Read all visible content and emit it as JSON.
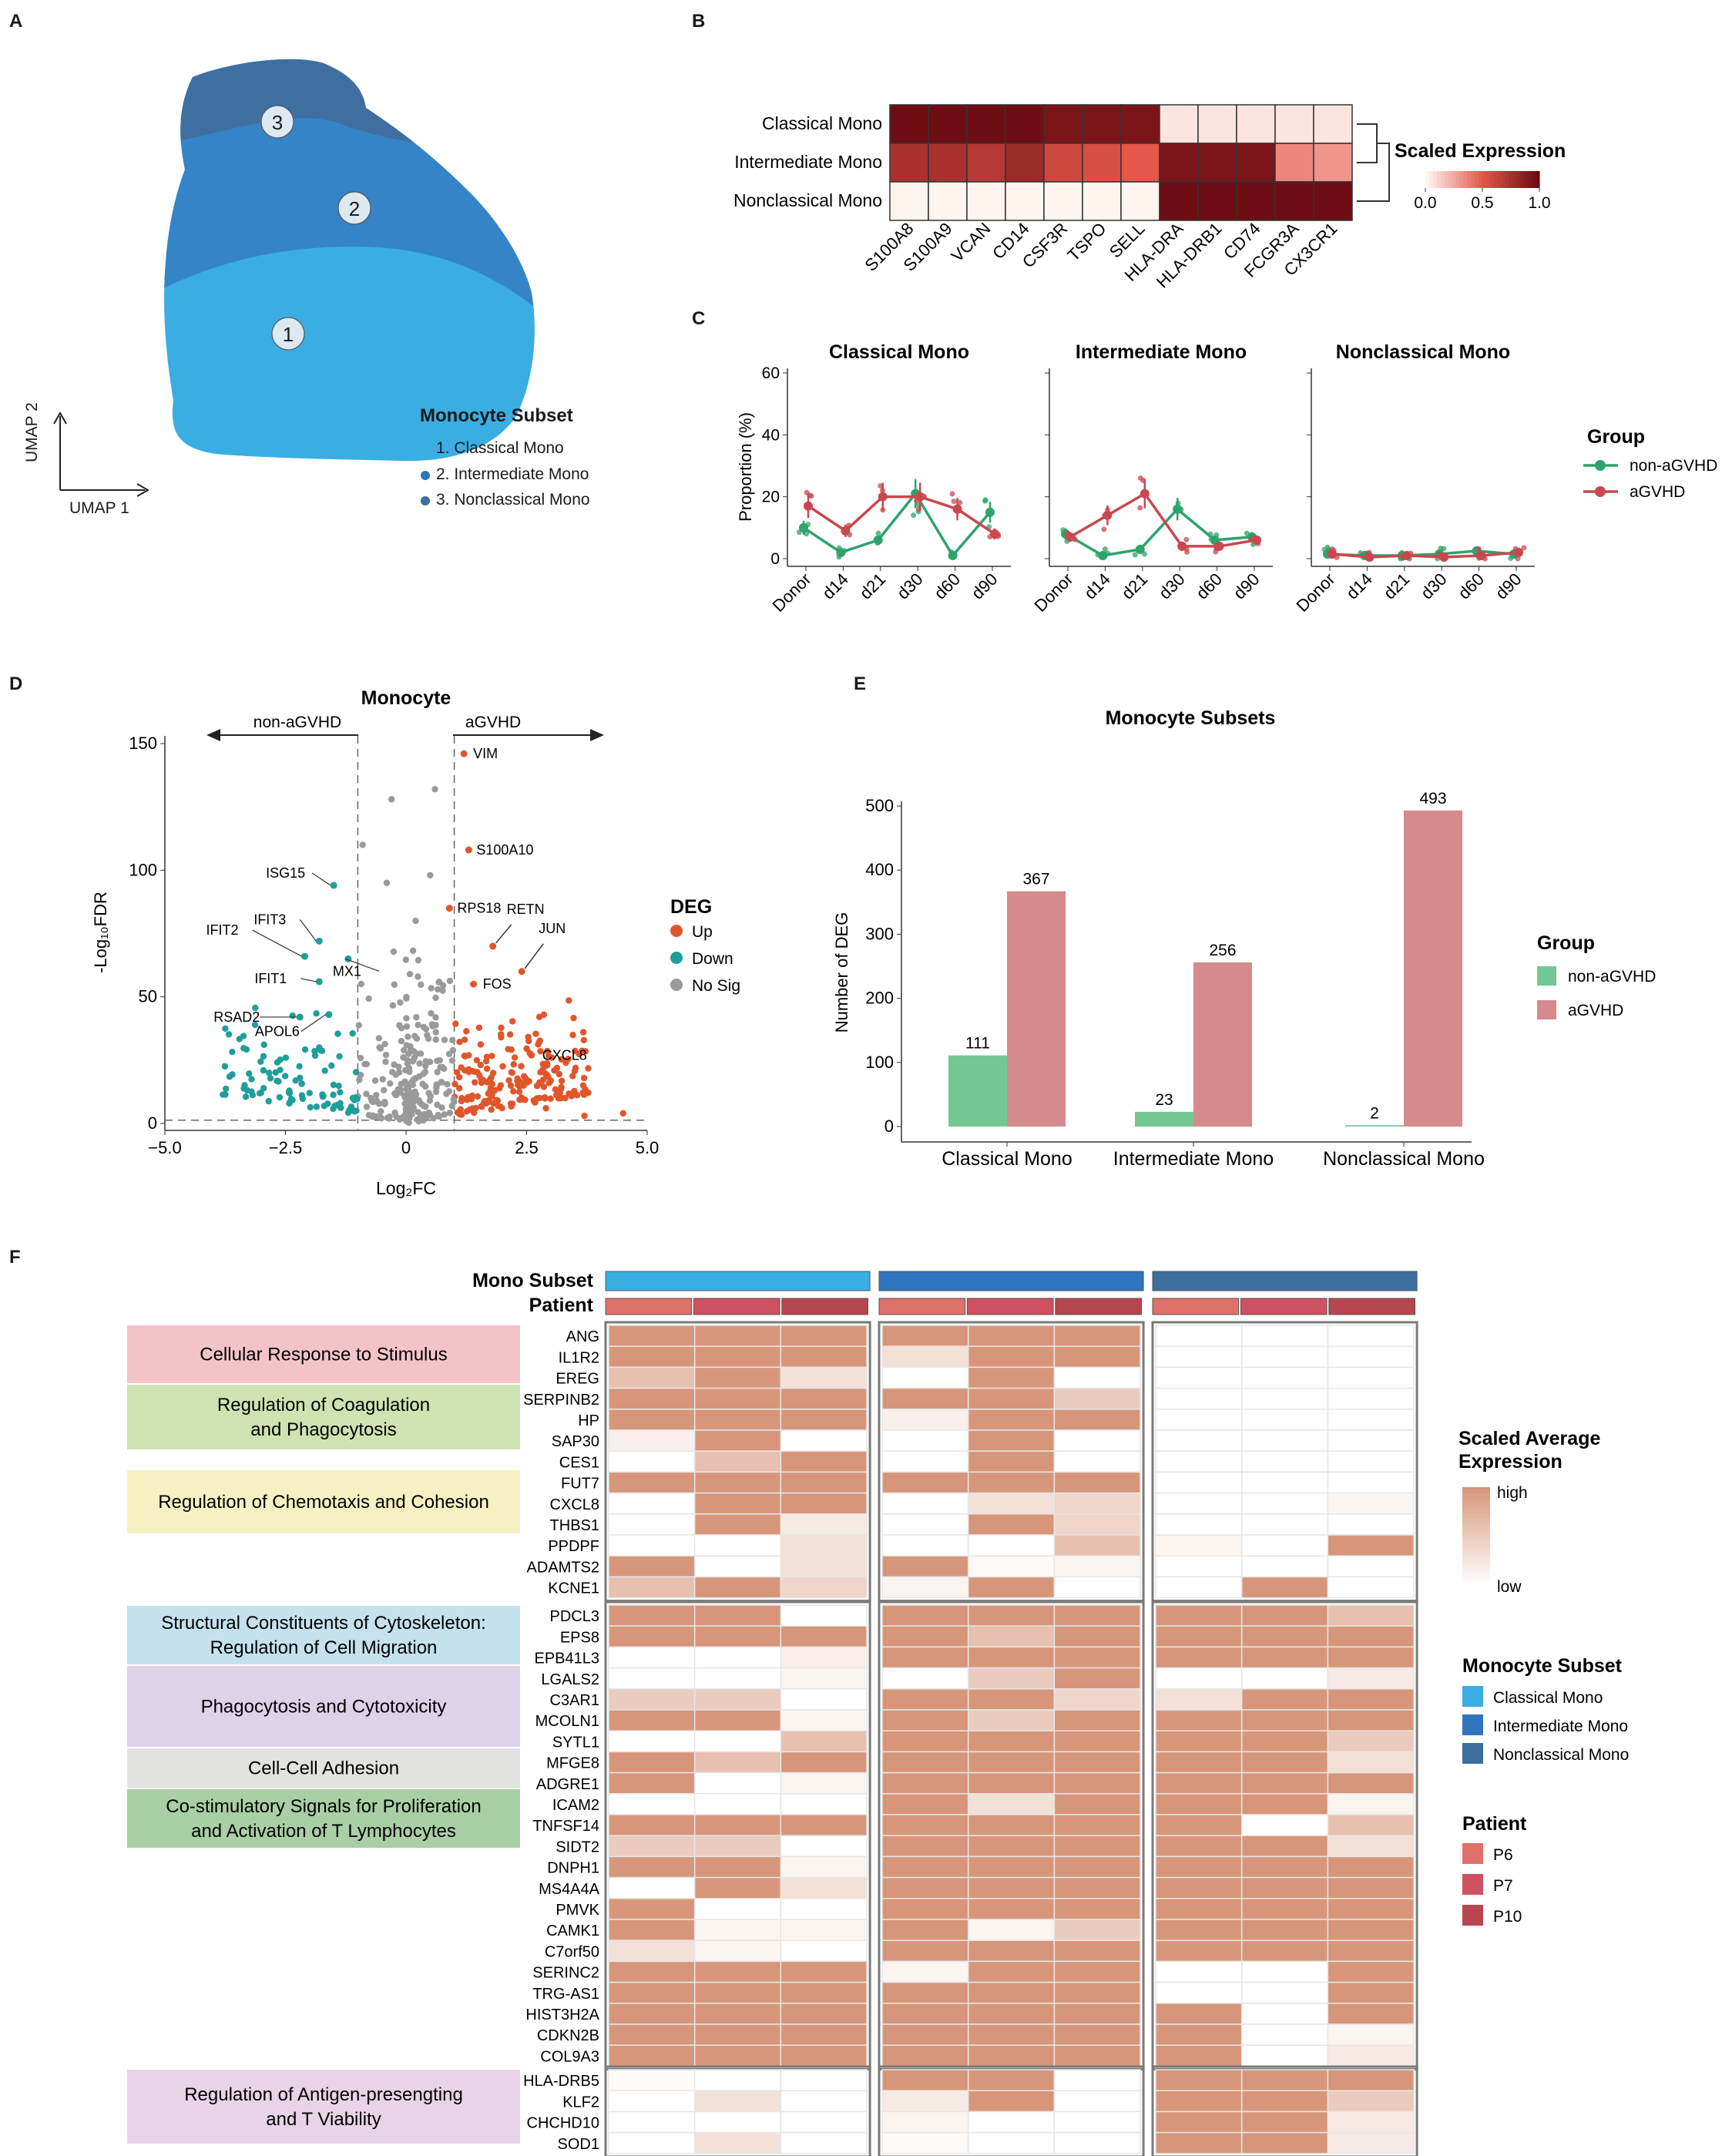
{
  "panels": {
    "A": "A",
    "B": "B",
    "C": "C",
    "D": "D",
    "E": "E",
    "F": "F"
  },
  "colors": {
    "classical": "#3aaee3",
    "intermediate": "#2f74bd",
    "nonclassical": "#3c6fa0",
    "non_agvhd_line": "#2ea36a",
    "agvhd_line": "#c8484f",
    "up": "#e0562a",
    "down": "#1f9e9a",
    "nosig": "#9a9a9a",
    "bar_non": "#74c795",
    "bar_agvhd": "#d58a8c",
    "heat_high": "#d7967a",
    "p6": "#e0706a",
    "p7": "#cf5060",
    "p10": "#b8454f"
  },
  "umap": {
    "xlabel": "UMAP 1",
    "ylabel": "UMAP 2",
    "legend_title": "Monocyte Subset",
    "legend_items": [
      "1. Classical Mono",
      "2. Intermediate Mono",
      "3. Nonclassical Mono"
    ],
    "cluster_labels": [
      "1",
      "2",
      "3"
    ]
  },
  "chart_data": [
    {
      "panel": "B",
      "type": "heatmap",
      "rows": [
        "Classical Mono",
        "Intermediate Mono",
        "Nonclassical Mono"
      ],
      "columns": [
        "S100A8",
        "S100A9",
        "VCAN",
        "CD14",
        "CSF3R",
        "TSPO",
        "SELL",
        "HLA-DRA",
        "HLA-DRB1",
        "CD74",
        "FCGR3A",
        "CX3CR1"
      ],
      "values": [
        [
          1.0,
          1.0,
          1.0,
          1.0,
          0.95,
          0.95,
          0.95,
          0.05,
          0.05,
          0.05,
          0.05,
          0.05
        ],
        [
          0.75,
          0.75,
          0.7,
          0.8,
          0.6,
          0.55,
          0.5,
          0.95,
          0.95,
          0.95,
          0.35,
          0.3
        ],
        [
          0.0,
          0.0,
          0.0,
          0.0,
          0.0,
          0.0,
          0.0,
          1.0,
          1.0,
          1.0,
          1.0,
          1.0
        ]
      ],
      "legend_title": "Scaled Expression",
      "legend_ticks": [
        "0.0",
        "0.5",
        "1.0"
      ]
    },
    {
      "panel": "C",
      "type": "line",
      "ylabel": "Proportion (%)",
      "ylim": [
        0,
        60
      ],
      "yticks": [
        "0",
        "20",
        "40",
        "60"
      ],
      "categories": [
        "Donor",
        "d14",
        "d21",
        "d30",
        "d60",
        "d90"
      ],
      "legend_title": "Group",
      "legend_entries": [
        "non-aGVHD",
        "aGVHD"
      ],
      "facets": [
        {
          "title": "Classical Mono",
          "series": [
            {
              "name": "non-aGVHD",
              "values": [
                10,
                2,
                6,
                21,
                1,
                15
              ]
            },
            {
              "name": "aGVHD",
              "values": [
                17,
                9,
                20,
                20,
                16,
                8
              ]
            }
          ]
        },
        {
          "title": "Intermediate Mono",
          "series": [
            {
              "name": "non-aGVHD",
              "values": [
                8,
                1,
                3,
                16,
                6,
                7
              ]
            },
            {
              "name": "aGVHD",
              "values": [
                7,
                14,
                21,
                4,
                4,
                6
              ]
            }
          ]
        },
        {
          "title": "Nonclassical Mono",
          "series": [
            {
              "name": "non-aGVHD",
              "values": [
                1.5,
                1,
                1,
                1.5,
                2.5,
                1.5
              ]
            },
            {
              "name": "aGVHD",
              "values": [
                1.5,
                0.5,
                1,
                0.5,
                1,
                2
              ]
            }
          ]
        }
      ]
    },
    {
      "panel": "D",
      "type": "scatter",
      "title": "Monocyte",
      "xlabel": "Log₂FC",
      "ylabel": "-Log₁₀FDR",
      "xlim": [
        -5,
        5
      ],
      "ylim": [
        0,
        150
      ],
      "xticks": [
        "−5.0",
        "−2.5",
        "0",
        "2.5",
        "5.0"
      ],
      "yticks": [
        "0",
        "50",
        "100",
        "150"
      ],
      "arrow_left": "non-aGVHD",
      "arrow_right": "aGVHD",
      "legend_title": "DEG",
      "legend_entries": [
        "Up",
        "Down",
        "No Sig"
      ],
      "labeled_up": [
        {
          "gene": "VIM",
          "x": 1.2,
          "y": 146
        },
        {
          "gene": "S100A10",
          "x": 1.3,
          "y": 108
        },
        {
          "gene": "RETN",
          "x": 1.8,
          "y": 70
        },
        {
          "gene": "RPS18",
          "x": 0.9,
          "y": 85
        },
        {
          "gene": "JUN",
          "x": 2.4,
          "y": 60
        },
        {
          "gene": "FOS",
          "x": 1.4,
          "y": 55
        },
        {
          "gene": "CXCL8",
          "x": 2.6,
          "y": 27
        }
      ],
      "labeled_down": [
        {
          "gene": "ISG15",
          "x": -1.5,
          "y": 94
        },
        {
          "gene": "IFIT3",
          "x": -1.8,
          "y": 72
        },
        {
          "gene": "IFIT2",
          "x": -2.1,
          "y": 66
        },
        {
          "gene": "MX1",
          "x": -1.2,
          "y": 65
        },
        {
          "gene": "IFIT1",
          "x": -1.8,
          "y": 56
        },
        {
          "gene": "RSAD2",
          "x": -2.2,
          "y": 42
        },
        {
          "gene": "APOL6",
          "x": -1.6,
          "y": 43
        }
      ]
    },
    {
      "panel": "E",
      "type": "bar",
      "title": "Monocyte Subsets",
      "ylabel": "Number of DEG",
      "ylim": [
        0,
        500
      ],
      "yticks": [
        "0",
        "100",
        "200",
        "300",
        "400",
        "500"
      ],
      "categories": [
        "Classical Mono",
        "Intermediate Mono",
        "Nonclassical Mono"
      ],
      "series": [
        {
          "name": "non-aGVHD",
          "values": [
            111,
            23,
            2
          ]
        },
        {
          "name": "aGVHD",
          "values": [
            367,
            256,
            493
          ]
        }
      ],
      "labels": [
        [
          "111",
          "367"
        ],
        [
          "23",
          "256"
        ],
        [
          "2",
          "493"
        ]
      ],
      "legend_title": "Group"
    },
    {
      "panel": "F",
      "type": "heatmap",
      "row_annotation_label": "Mono Subset",
      "col_annotation_label": "Patient",
      "groups": [
        {
          "genes": [
            "ANG",
            "IL1R2",
            "EREG",
            "SERPINB2",
            "HP",
            "SAP30",
            "CES1",
            "FUT7",
            "CXCL8",
            "THBS1",
            "PPDPF",
            "ADAMTS2",
            "KCNE1"
          ],
          "values": [
            [
              1,
              1,
              1,
              1,
              1,
              1,
              0,
              0,
              0
            ],
            [
              1,
              1,
              1,
              0.3,
              1,
              1,
              0,
              0,
              0
            ],
            [
              0.6,
              1,
              0.3,
              0,
              1,
              0,
              0,
              0,
              0
            ],
            [
              1,
              1,
              1,
              1,
              1,
              0.5,
              0,
              0,
              0
            ],
            [
              1,
              1,
              1,
              0.15,
              1,
              1,
              0,
              0,
              0
            ],
            [
              0.15,
              1,
              0,
              0,
              1,
              0,
              0,
              0,
              0
            ],
            [
              0,
              0.6,
              1,
              0,
              1,
              0,
              0,
              0,
              0
            ],
            [
              1,
              1,
              1,
              1,
              1,
              1,
              0,
              0,
              0
            ],
            [
              0,
              1,
              1,
              0,
              0.3,
              0.4,
              0,
              0,
              0.1
            ],
            [
              0,
              1,
              0.2,
              0,
              1,
              0.4,
              0,
              0,
              0
            ],
            [
              0,
              0,
              0.3,
              0,
              0,
              0.6,
              0.1,
              0,
              1
            ],
            [
              1,
              0,
              0.3,
              1,
              0.05,
              0.1,
              0,
              0,
              0
            ],
            [
              0.6,
              1,
              0.4,
              0.1,
              1,
              0,
              0,
              1,
              0
            ]
          ]
        },
        {
          "genes": [
            "PDCL3",
            "EPS8",
            "EPB41L3",
            "LGALS2",
            "C3AR1",
            "MCOLN1",
            "SYTL1",
            "MFGE8",
            "ADGRE1",
            "ICAM2",
            "TNFSF14",
            "SIDT2",
            "DNPH1",
            "MS4A4A",
            "PMVK",
            "CAMK1",
            "C7orf50",
            "SERINC2",
            "TRG-AS1",
            "HIST3H2A",
            "CDKN2B",
            "COL9A3"
          ],
          "values": [
            [
              1,
              1,
              0,
              1,
              1,
              1,
              1,
              1,
              0.6
            ],
            [
              1,
              1,
              1,
              1,
              0.6,
              1,
              1,
              1,
              1
            ],
            [
              0,
              0,
              0.15,
              1,
              1,
              1,
              1,
              1,
              1
            ],
            [
              0,
              0,
              0.1,
              0,
              0.5,
              1,
              0,
              0,
              0.2
            ],
            [
              0.5,
              0.5,
              0,
              1,
              1,
              0.4,
              0.3,
              1,
              1
            ],
            [
              1,
              1,
              0.1,
              1,
              0.5,
              1,
              1,
              1,
              1
            ],
            [
              0,
              0,
              0.6,
              1,
              1,
              1,
              1,
              1,
              0.5
            ],
            [
              1,
              0.6,
              1,
              1,
              1,
              1,
              1,
              1,
              0.3
            ],
            [
              1,
              0,
              0.1,
              1,
              1,
              1,
              1,
              1,
              1
            ],
            [
              0,
              0,
              0,
              1,
              0.3,
              1,
              1,
              1,
              0.1
            ],
            [
              1,
              1,
              1,
              1,
              1,
              1,
              1,
              0,
              0.6
            ],
            [
              0.5,
              0.5,
              0,
              1,
              1,
              1,
              1,
              1,
              0.3
            ],
            [
              1,
              1,
              0.1,
              1,
              1,
              1,
              1,
              1,
              1
            ],
            [
              0,
              1,
              0.3,
              1,
              1,
              1,
              1,
              1,
              1
            ],
            [
              1,
              0,
              0,
              1,
              1,
              1,
              1,
              1,
              1
            ],
            [
              1,
              0.1,
              0.1,
              1,
              0.1,
              0.5,
              1,
              1,
              1
            ],
            [
              0.3,
              0.1,
              0,
              1,
              1,
              1,
              1,
              1,
              1
            ],
            [
              1,
              1,
              1,
              0.1,
              1,
              1,
              0,
              0,
              1
            ],
            [
              1,
              1,
              1,
              1,
              1,
              1,
              0,
              0,
              1
            ],
            [
              1,
              1,
              1,
              1,
              1,
              1,
              1,
              0,
              1
            ],
            [
              1,
              1,
              1,
              1,
              1,
              1,
              1,
              0,
              0.1
            ],
            [
              1,
              1,
              1,
              1,
              1,
              1,
              1,
              0,
              0.2
            ]
          ]
        },
        {
          "genes": [
            "HLA-DRB5",
            "KLF2",
            "CHCHD10",
            "SOD1"
          ],
          "values": [
            [
              0.05,
              0,
              0,
              1,
              1,
              0,
              1,
              1,
              1
            ],
            [
              0,
              0.3,
              0,
              0.2,
              1,
              0,
              1,
              1,
              0.5
            ],
            [
              0,
              0,
              0,
              0.1,
              0,
              0,
              1,
              1,
              0.2
            ],
            [
              0,
              0.3,
              0,
              0.05,
              0,
              0,
              1,
              1,
              0.2
            ]
          ]
        }
      ],
      "pathways": [
        "Cellular Response to  Stimulus",
        "Regulation of Coagulation|and Phagocytosis",
        "Regulation of Chemotaxis and Cohesion",
        "Structural Constituents of Cytoskeleton:|Regulation of Cell Migration",
        "Phagocytosis and Cytotoxicity",
        "Cell-Cell Adhesion",
        "Co-stimulatory Signals for Proliferation| and  Activation of T Lymphocytes",
        "Regulation of Antigen-presengting|and T Viability"
      ],
      "legend_expr_title": "Scaled Average|Expression",
      "legend_expr_high": "high",
      "legend_expr_low": "low",
      "legend_subset_title": "Monocyte Subset",
      "legend_subset_items": [
        "Classical Mono",
        "Intermediate Mono",
        "Nonclassical Mono"
      ],
      "legend_patient_title": "Patient",
      "legend_patient_items": [
        "P6",
        "P7",
        "P10"
      ]
    }
  ]
}
